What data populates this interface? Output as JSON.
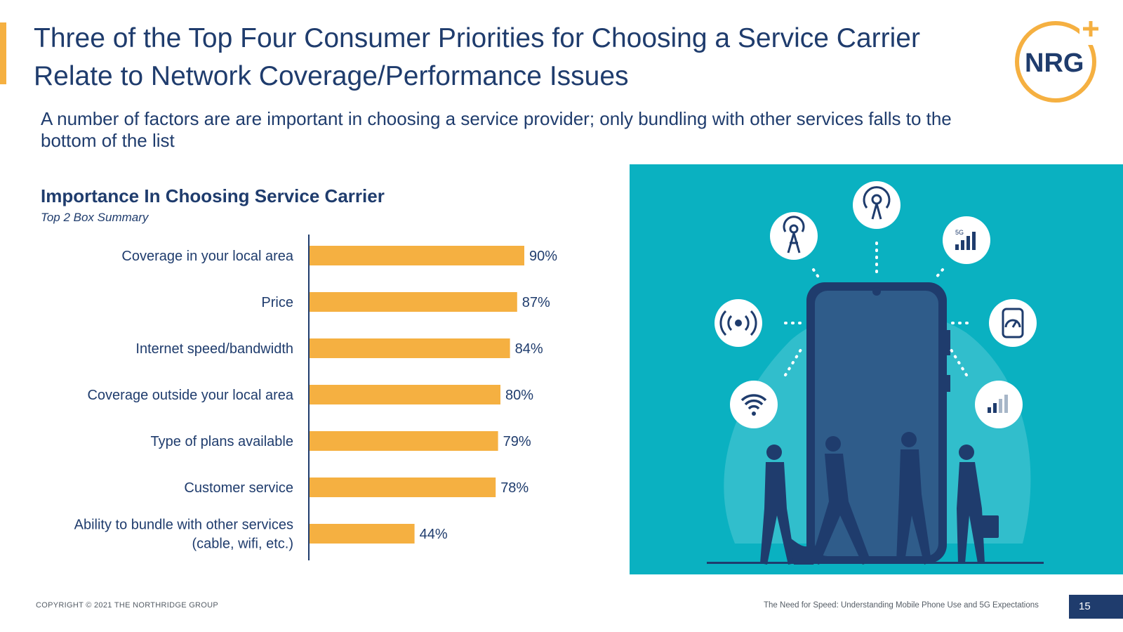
{
  "header": {
    "title": "Three of the Top Four Consumer Priorities for Choosing a Service Carrier Relate to Network Coverage/Performance Issues",
    "subtitle": "A number of factors are are  important in choosing a service provider; only bundling with other services falls to the bottom of the list",
    "logo_text": "NRG"
  },
  "chart_data": {
    "type": "bar",
    "orientation": "horizontal",
    "title": "Importance In Choosing Service Carrier",
    "subtitle": "Top 2 Box Summary",
    "categories": [
      [
        "Coverage in your local area"
      ],
      [
        "Price"
      ],
      [
        "Internet speed/bandwidth"
      ],
      [
        "Coverage outside your local area"
      ],
      [
        "Type of plans available"
      ],
      [
        "Customer service"
      ],
      [
        "Ability to bundle with other services",
        "(cable, wifi, etc.)"
      ]
    ],
    "values": [
      90,
      87,
      84,
      80,
      79,
      78,
      44
    ],
    "value_suffix": "%",
    "xlim": [
      0,
      100
    ],
    "xlabel": "",
    "ylabel": "",
    "grid": false,
    "bar_color": "#f5b041"
  },
  "illustration": {
    "background": "#0ab1c1",
    "badge_5g": "5G"
  },
  "footer": {
    "copyright": "COPYRIGHT © 2021 THE NORTHRIDGE GROUP",
    "report_title": "The Need for Speed: Understanding Mobile Phone Use and 5G Expectations",
    "page_number": "15"
  }
}
